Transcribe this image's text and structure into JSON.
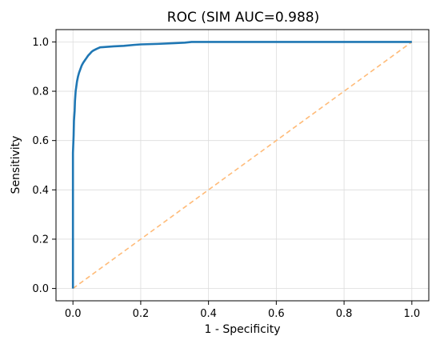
{
  "chart_data": {
    "type": "line",
    "title": "ROC (SIM AUC=0.988)",
    "xlabel": "1 - Specificity",
    "ylabel": "Sensitivity",
    "xlim": [
      -0.05,
      1.05
    ],
    "ylim": [
      -0.05,
      1.05
    ],
    "xticks": [
      "0.0",
      "0.2",
      "0.4",
      "0.6",
      "0.8",
      "1.0"
    ],
    "yticks": [
      "0.0",
      "0.2",
      "0.4",
      "0.6",
      "0.8",
      "1.0"
    ],
    "grid": true,
    "legend": "none",
    "series": [
      {
        "color": "#1f77b4",
        "style": "solid",
        "x": [
          0,
          0,
          0.002,
          0.003,
          0.005,
          0.006,
          0.008,
          0.01,
          0.012,
          0.015,
          0.018,
          0.022,
          0.026,
          0.03,
          0.035,
          0.04,
          0.045,
          0.05,
          0.055,
          0.06,
          0.07,
          0.08,
          0.1,
          0.12,
          0.15,
          0.18,
          0.2,
          0.25,
          0.3,
          0.33,
          0.35,
          0.4,
          0.5,
          0.6,
          0.7,
          0.8,
          0.9,
          1.0
        ],
        "y": [
          0,
          0.55,
          0.62,
          0.68,
          0.72,
          0.76,
          0.8,
          0.82,
          0.84,
          0.86,
          0.875,
          0.89,
          0.905,
          0.915,
          0.925,
          0.935,
          0.945,
          0.952,
          0.96,
          0.965,
          0.972,
          0.978,
          0.98,
          0.982,
          0.984,
          0.988,
          0.99,
          0.992,
          0.995,
          0.997,
          1.0,
          1.0,
          1.0,
          1.0,
          1.0,
          1.0,
          1.0,
          1.0
        ]
      },
      {
        "color": "#ffbb78",
        "style": "dashed",
        "x": [
          0,
          1
        ],
        "y": [
          0,
          1
        ]
      }
    ]
  }
}
